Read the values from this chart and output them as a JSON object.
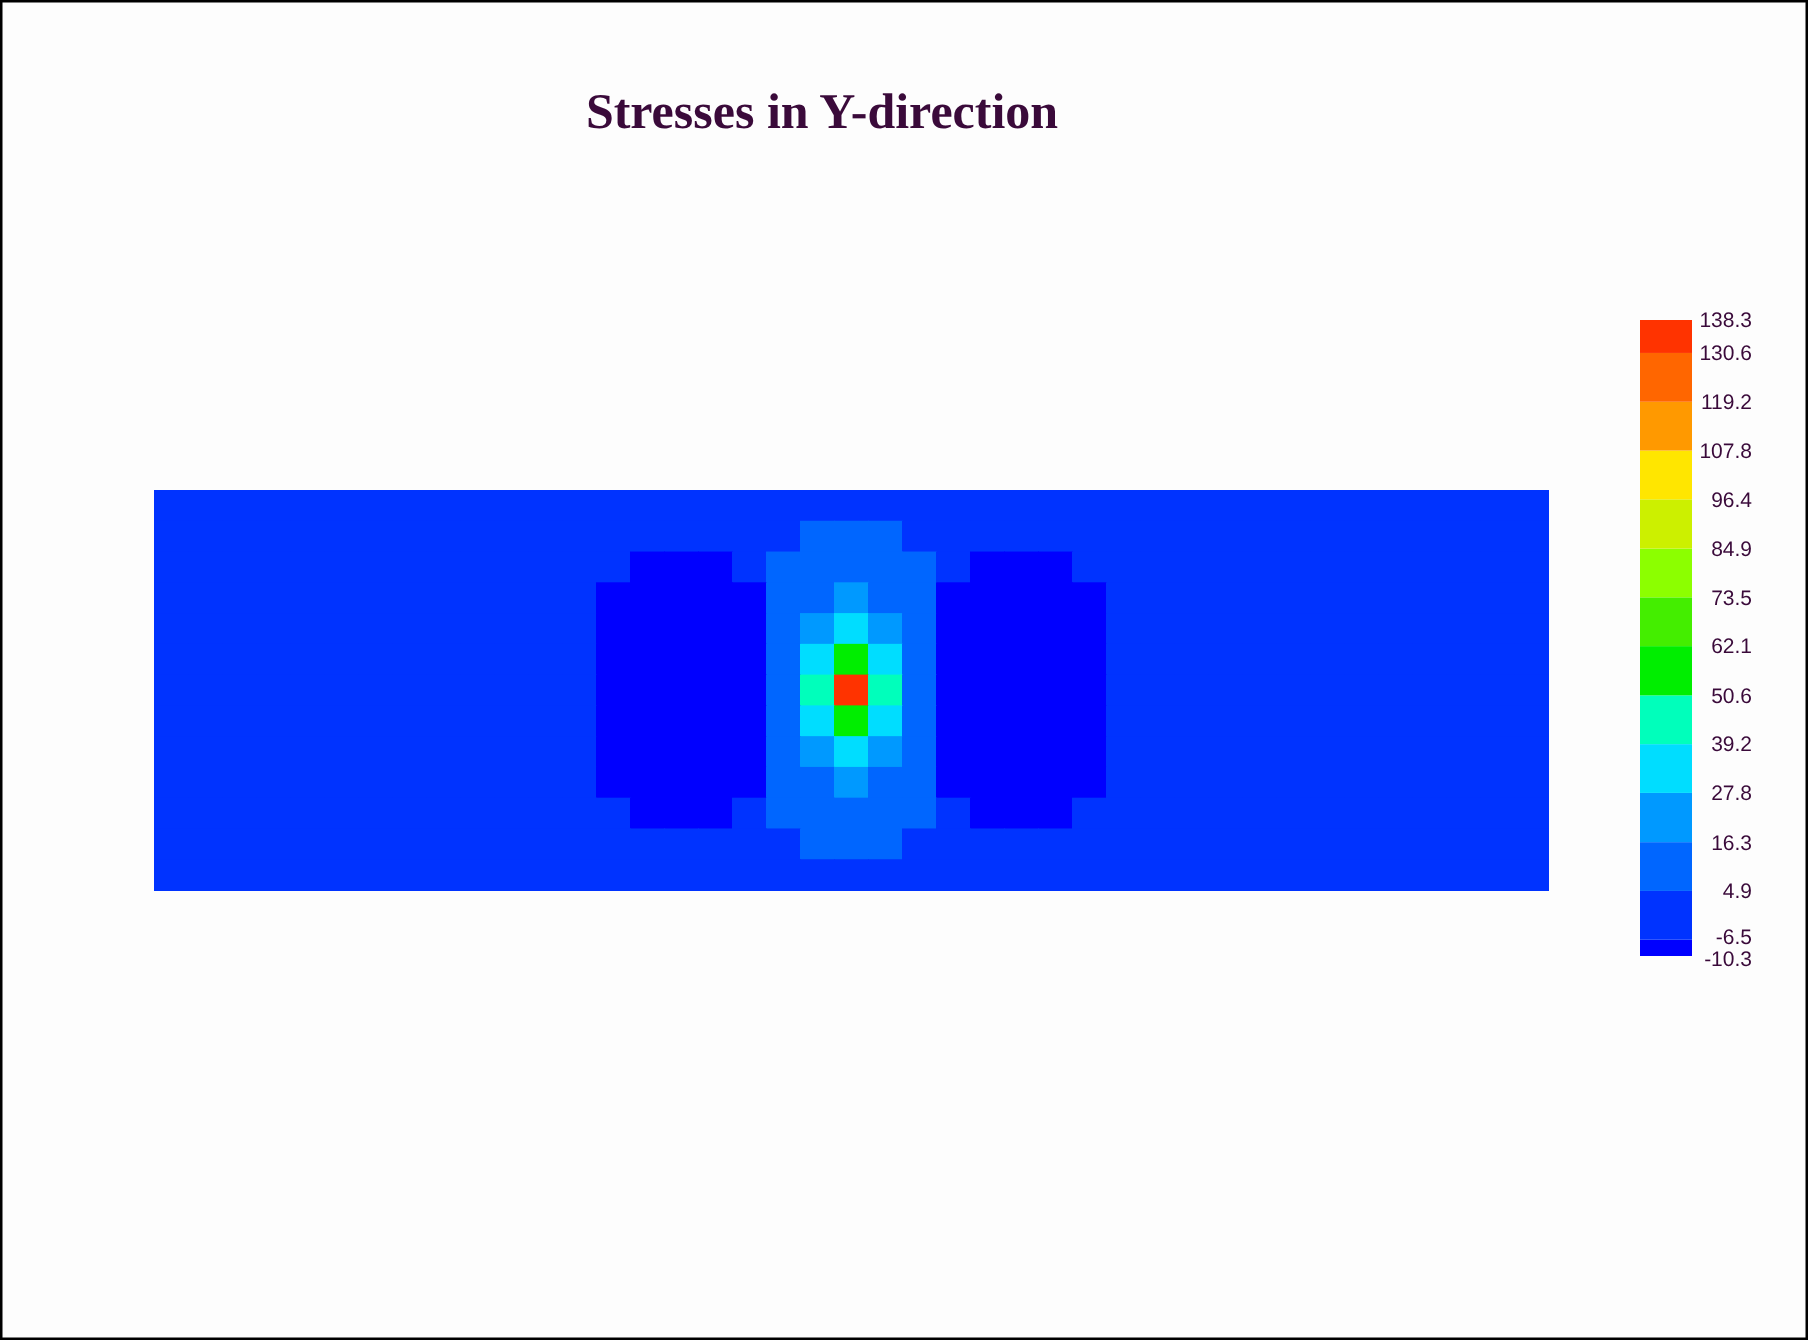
{
  "chart_data": {
    "type": "heatmap",
    "title": "Stresses in Y-direction",
    "categories": [
      null,
      null,
      null,
      null,
      null,
      null,
      null,
      null,
      null,
      null,
      null,
      null,
      null,
      null,
      null,
      null,
      null,
      null,
      null,
      null,
      null,
      null,
      null,
      null,
      null,
      null,
      null,
      null,
      null,
      null,
      null,
      null,
      null,
      null,
      null,
      null,
      null,
      null,
      null,
      null,
      null
    ],
    "y_categories": [
      null,
      null,
      null,
      null,
      null,
      null,
      null,
      null,
      null,
      null,
      null,
      null,
      null
    ],
    "cells": [
      [
        0,
        0,
        0,
        0,
        0,
        0,
        0,
        0,
        0,
        0,
        0,
        0,
        0,
        0,
        0,
        0,
        0,
        0,
        0,
        0,
        0,
        0,
        0,
        0,
        0,
        0,
        0,
        0,
        0,
        0,
        0,
        0,
        0,
        0,
        0,
        0,
        0,
        0,
        0,
        0,
        0
      ],
      [
        0,
        0,
        0,
        0,
        0,
        0,
        0,
        0,
        0,
        0,
        0,
        0,
        0,
        0,
        0,
        0,
        0,
        0,
        0,
        6,
        6,
        6,
        0,
        0,
        0,
        0,
        0,
        0,
        0,
        0,
        0,
        0,
        0,
        0,
        0,
        0,
        0,
        0,
        0,
        0,
        0
      ],
      [
        0,
        0,
        0,
        0,
        0,
        0,
        0,
        0,
        0,
        0,
        0,
        0,
        0,
        0,
        -7,
        -7,
        -7,
        0,
        5,
        10,
        12,
        10,
        5,
        0,
        -7,
        -7,
        -7,
        0,
        0,
        0,
        0,
        0,
        0,
        0,
        0,
        0,
        0,
        0,
        0,
        0,
        0
      ],
      [
        0,
        0,
        0,
        0,
        0,
        0,
        0,
        0,
        0,
        0,
        0,
        0,
        0,
        -7,
        -7,
        -7,
        -7,
        -7,
        6,
        15,
        20,
        15,
        6,
        -7,
        -7,
        -7,
        -7,
        -7,
        0,
        0,
        0,
        0,
        0,
        0,
        0,
        0,
        0,
        0,
        0,
        0,
        0
      ],
      [
        0,
        0,
        0,
        0,
        0,
        0,
        0,
        0,
        0,
        0,
        0,
        0,
        0,
        -7,
        -7,
        -9,
        -9,
        -9,
        8,
        22,
        32,
        22,
        8,
        -9,
        -9,
        -9,
        -7,
        -7,
        0,
        0,
        0,
        0,
        0,
        0,
        0,
        0,
        0,
        0,
        0,
        0,
        0
      ],
      [
        0,
        0,
        0,
        0,
        0,
        0,
        0,
        0,
        0,
        0,
        0,
        0,
        0,
        -7,
        -7,
        -9,
        -9,
        -9,
        10,
        35,
        60,
        35,
        10,
        -9,
        -9,
        -9,
        -7,
        -7,
        0,
        0,
        0,
        0,
        0,
        0,
        0,
        0,
        0,
        0,
        0,
        0,
        0
      ],
      [
        0,
        0,
        0,
        0,
        0,
        0,
        0,
        0,
        0,
        0,
        0,
        0,
        0,
        -7,
        -7,
        -9,
        -9,
        -9,
        12,
        45,
        135,
        45,
        12,
        -9,
        -9,
        -9,
        -7,
        -7,
        0,
        0,
        0,
        0,
        0,
        0,
        0,
        0,
        0,
        0,
        0,
        0,
        0
      ],
      [
        0,
        0,
        0,
        0,
        0,
        0,
        0,
        0,
        0,
        0,
        0,
        0,
        0,
        -7,
        -7,
        -9,
        -9,
        -9,
        10,
        35,
        60,
        35,
        10,
        -9,
        -9,
        -9,
        -7,
        -7,
        0,
        0,
        0,
        0,
        0,
        0,
        0,
        0,
        0,
        0,
        0,
        0,
        0
      ],
      [
        0,
        0,
        0,
        0,
        0,
        0,
        0,
        0,
        0,
        0,
        0,
        0,
        0,
        -7,
        -7,
        -9,
        -9,
        -9,
        8,
        22,
        32,
        22,
        8,
        -9,
        -9,
        -9,
        -7,
        -7,
        0,
        0,
        0,
        0,
        0,
        0,
        0,
        0,
        0,
        0,
        0,
        0,
        0
      ],
      [
        0,
        0,
        0,
        0,
        0,
        0,
        0,
        0,
        0,
        0,
        0,
        0,
        0,
        -7,
        -7,
        -7,
        -7,
        -7,
        6,
        15,
        20,
        15,
        6,
        -7,
        -7,
        -7,
        -7,
        -7,
        0,
        0,
        0,
        0,
        0,
        0,
        0,
        0,
        0,
        0,
        0,
        0,
        0
      ],
      [
        0,
        0,
        0,
        0,
        0,
        0,
        0,
        0,
        0,
        0,
        0,
        0,
        0,
        0,
        -7,
        -7,
        -7,
        0,
        5,
        10,
        12,
        10,
        5,
        0,
        -7,
        -7,
        -7,
        0,
        0,
        0,
        0,
        0,
        0,
        0,
        0,
        0,
        0,
        0,
        0,
        0,
        0
      ],
      [
        0,
        0,
        0,
        0,
        0,
        0,
        0,
        0,
        0,
        0,
        0,
        0,
        0,
        0,
        0,
        0,
        0,
        0,
        0,
        6,
        6,
        6,
        0,
        0,
        0,
        0,
        0,
        0,
        0,
        0,
        0,
        0,
        0,
        0,
        0,
        0,
        0,
        0,
        0,
        0,
        0
      ],
      [
        0,
        0,
        0,
        0,
        0,
        0,
        0,
        0,
        0,
        0,
        0,
        0,
        0,
        0,
        0,
        0,
        0,
        0,
        0,
        0,
        0,
        0,
        0,
        0,
        0,
        0,
        0,
        0,
        0,
        0,
        0,
        0,
        0,
        0,
        0,
        0,
        0,
        0,
        0,
        0,
        0
      ]
    ],
    "clim": [
      -10.3,
      138.3
    ],
    "cticks": [
      -10.3,
      -6.5,
      4.9,
      16.3,
      27.8,
      39.2,
      50.6,
      62.1,
      73.5,
      84.9,
      96.4,
      107.8,
      119.2,
      130.6,
      138.3
    ],
    "colors": [
      "#0000ff",
      "#0033ff",
      "#0066ff",
      "#0099ff",
      "#00ddff",
      "#00ffbb",
      "#00ee00",
      "#44ee00",
      "#8cff00",
      "#ccf000",
      "#ffe600",
      "#ff9900",
      "#ff6600",
      "#ff3300"
    ]
  }
}
